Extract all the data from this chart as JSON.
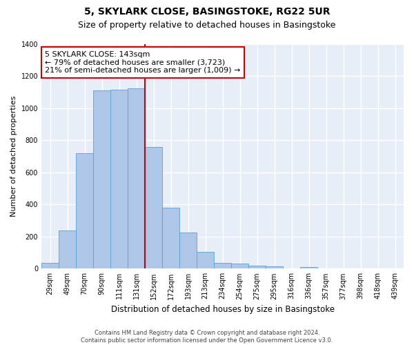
{
  "title1": "5, SKYLARK CLOSE, BASINGSTOKE, RG22 5UR",
  "title2": "Size of property relative to detached houses in Basingstoke",
  "xlabel": "Distribution of detached houses by size in Basingstoke",
  "ylabel": "Number of detached properties",
  "bar_labels": [
    "29sqm",
    "49sqm",
    "70sqm",
    "90sqm",
    "111sqm",
    "131sqm",
    "152sqm",
    "172sqm",
    "193sqm",
    "213sqm",
    "234sqm",
    "254sqm",
    "275sqm",
    "295sqm",
    "316sqm",
    "336sqm",
    "357sqm",
    "377sqm",
    "398sqm",
    "418sqm",
    "439sqm"
  ],
  "bar_values": [
    35,
    240,
    720,
    1110,
    1115,
    1125,
    760,
    380,
    225,
    105,
    35,
    30,
    20,
    13,
    0,
    10,
    0,
    0,
    0,
    0,
    0
  ],
  "bar_color": "#aec6e8",
  "bar_edge_color": "#5a9fd4",
  "bg_color": "#e8eef8",
  "grid_color": "#ffffff",
  "property_line_x": 5.5,
  "property_line_color": "#cc0000",
  "annotation_text": "5 SKYLARK CLOSE: 143sqm\n← 79% of detached houses are smaller (3,723)\n21% of semi-detached houses are larger (1,009) →",
  "annotation_box_color": "#ffffff",
  "annotation_box_edge": "#cc0000",
  "ylim": [
    0,
    1400
  ],
  "yticks": [
    0,
    200,
    400,
    600,
    800,
    1000,
    1200,
    1400
  ],
  "footer": "Contains HM Land Registry data © Crown copyright and database right 2024.\nContains public sector information licensed under the Open Government Licence v3.0.",
  "title1_fontsize": 10,
  "title2_fontsize": 9,
  "xlabel_fontsize": 8.5,
  "ylabel_fontsize": 8,
  "tick_fontsize": 7,
  "annotation_fontsize": 8,
  "footer_fontsize": 6
}
